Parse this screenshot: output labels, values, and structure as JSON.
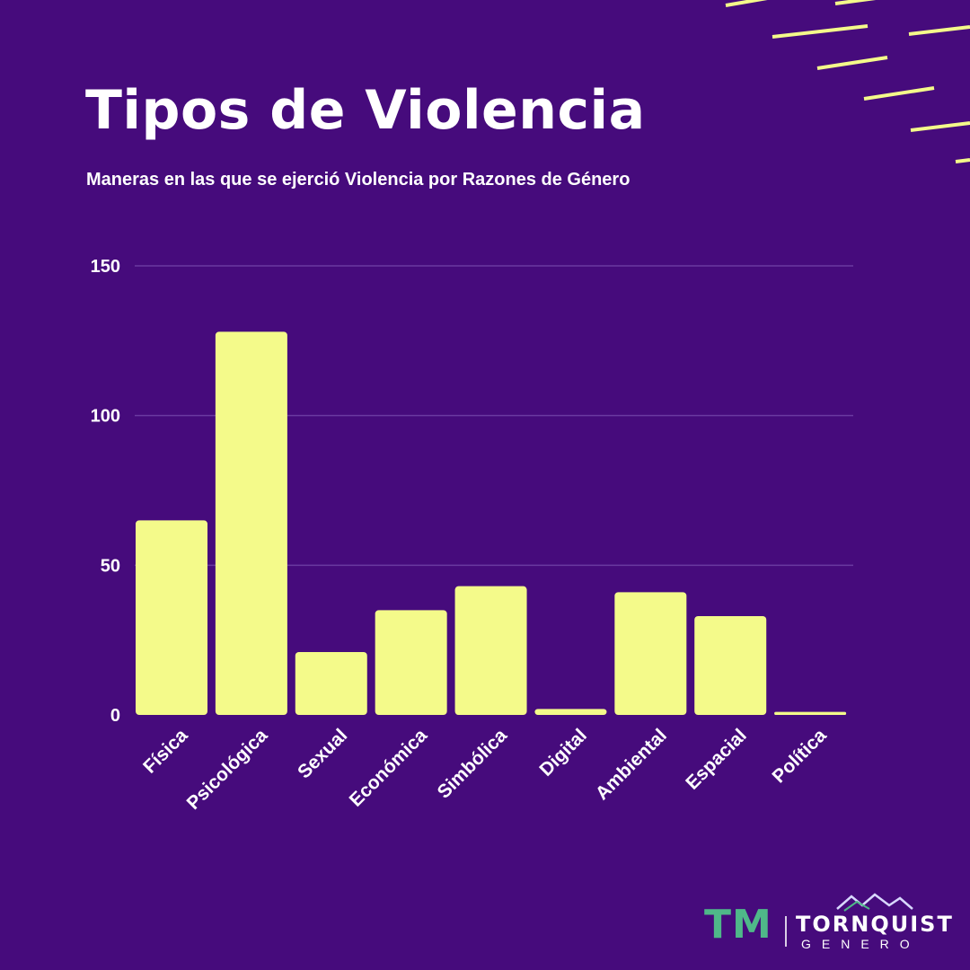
{
  "colors": {
    "background": "#460b7c",
    "bar": "#f4fa8a",
    "text": "#ffffff",
    "gridline": "#6a3aa0",
    "accent_lines": "#f4fa8a",
    "logo_tm": "#4fb889",
    "logo_mountains": [
      "#4fb889",
      "#9b8cff",
      "#d8d8ff"
    ]
  },
  "header": {
    "title": "Tipos de Violencia",
    "subtitle": "Maneras en las que se ejerció Violencia por Razones de Género"
  },
  "chart_data": {
    "type": "bar",
    "categories": [
      "Física",
      "Psicológica",
      "Sexual",
      "Económica",
      "Simbólica",
      "Digital",
      "Ambiental",
      "Espacial",
      "Política"
    ],
    "values": [
      65,
      128,
      21,
      35,
      43,
      2,
      41,
      33,
      1
    ],
    "ylim": [
      0,
      150
    ],
    "yticks": [
      0,
      50,
      100,
      150
    ],
    "xlabel": "",
    "ylabel": "",
    "grid": true
  },
  "logo": {
    "mark": "TM",
    "name": "TORNQUIST",
    "sub": "GENERO",
    "icon": "mountains-icon"
  }
}
